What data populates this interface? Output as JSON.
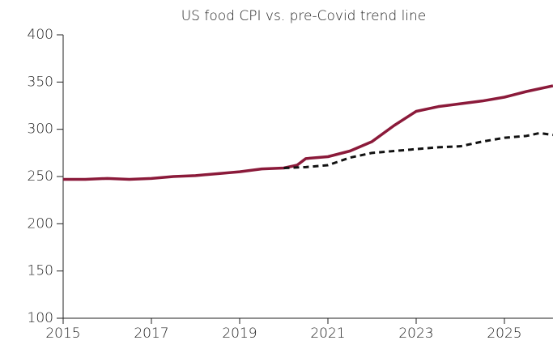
{
  "chart_data": {
    "type": "line",
    "title": "US food CPI vs. pre-Covid trend line",
    "xlim": [
      2015,
      2026.1
    ],
    "xticks": [
      2015,
      2017,
      2019,
      2021,
      2023,
      2025
    ],
    "ylim": [
      100,
      400
    ],
    "yticks": [
      100,
      150,
      200,
      250,
      300,
      350,
      400
    ],
    "series": [
      {
        "color": "#8b1a3a",
        "line_style": "solid",
        "x": [
          2015,
          2015.5,
          2016,
          2016.5,
          2017,
          2017.5,
          2018,
          2018.5,
          2019,
          2019.5,
          2020,
          2020.3,
          2020.5,
          2021,
          2021.5,
          2022,
          2022.5,
          2023,
          2023.5,
          2024,
          2024.5,
          2025,
          2025.5,
          2026.1
        ],
        "values": [
          247,
          247,
          248,
          247,
          248,
          250,
          251,
          253,
          255,
          258,
          259,
          262,
          269,
          271,
          277,
          287,
          304,
          319,
          324,
          327,
          330,
          334,
          340,
          346
        ]
      },
      {
        "color": "#111111",
        "line_style": "dashed",
        "x": [
          2020,
          2020.5,
          2021,
          2021.5,
          2022,
          2022.5,
          2023,
          2023.5,
          2024,
          2024.5,
          2025,
          2025.5,
          2025.8,
          2026.1
        ],
        "values": [
          259,
          260,
          262,
          270,
          275,
          277,
          279,
          281,
          282,
          287,
          291,
          293,
          296,
          294
        ]
      }
    ]
  }
}
